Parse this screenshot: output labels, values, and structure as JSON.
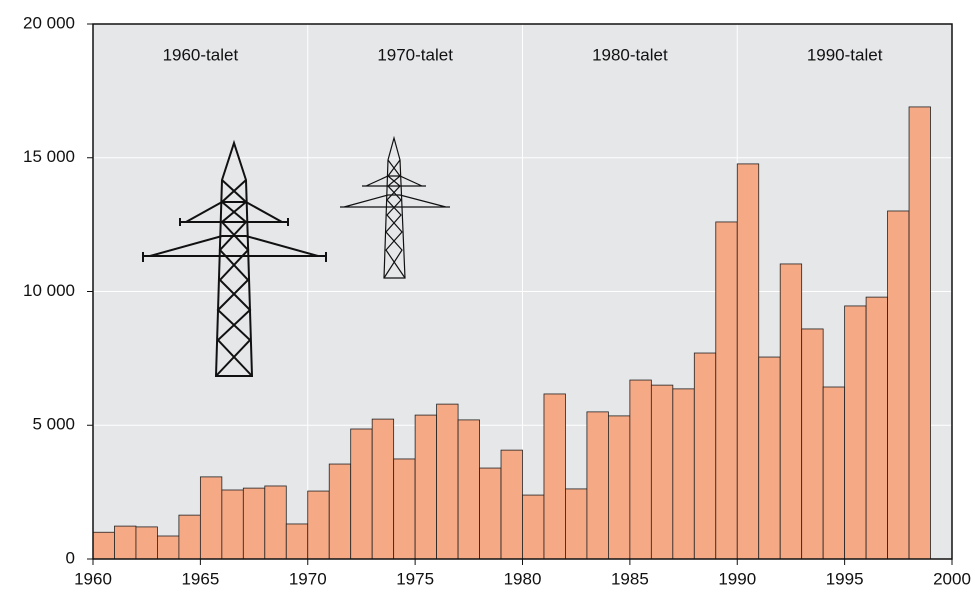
{
  "chart_data": {
    "type": "histogram",
    "bins": [
      1960,
      1961,
      1962,
      1963,
      1964,
      1965,
      1966,
      1967,
      1968,
      1969,
      1970,
      1971,
      1972,
      1973,
      1974,
      1975,
      1976,
      1977,
      1978,
      1979,
      1980,
      1981,
      1982,
      1983,
      1984,
      1985,
      1986,
      1987,
      1988,
      1989,
      1990,
      1991,
      1992,
      1993,
      1994,
      1995,
      1996,
      1997,
      1998,
      1999
    ],
    "values": [
      1000,
      1230,
      1200,
      860,
      1640,
      3070,
      2580,
      2650,
      2730,
      1310,
      2540,
      3550,
      4860,
      5230,
      3740,
      5380,
      5790,
      5200,
      3400,
      4070,
      2390,
      6170,
      2620,
      5500,
      5350,
      6690,
      6500,
      6360,
      7700,
      12600,
      14770,
      7550,
      11030,
      8600,
      6430,
      9460,
      9790,
      13010,
      16900
    ],
    "color": "#f6a985",
    "xlim": [
      1960,
      2000
    ],
    "xticks": [
      1960,
      1965,
      1970,
      1975,
      1980,
      1985,
      1990,
      1995,
      2000
    ],
    "ylim": [
      0,
      20000
    ],
    "yticks": [
      0,
      {
        "value": 5000,
        "label": "5 000"
      },
      {
        "value": 10000,
        "label": "10 000"
      },
      {
        "value": 15000,
        "label": "15 000"
      },
      {
        "value": 20000,
        "label": "20 000"
      }
    ],
    "grid": true,
    "decades": [
      {
        "label": "1960-talet",
        "start": 1960,
        "end": 1970
      },
      {
        "label": "1970-talet",
        "start": 1970,
        "end": 1980
      },
      {
        "label": "1980-talet",
        "start": 1980,
        "end": 1990
      },
      {
        "label": "1990-talet",
        "start": 1990,
        "end": 2000
      }
    ]
  }
}
